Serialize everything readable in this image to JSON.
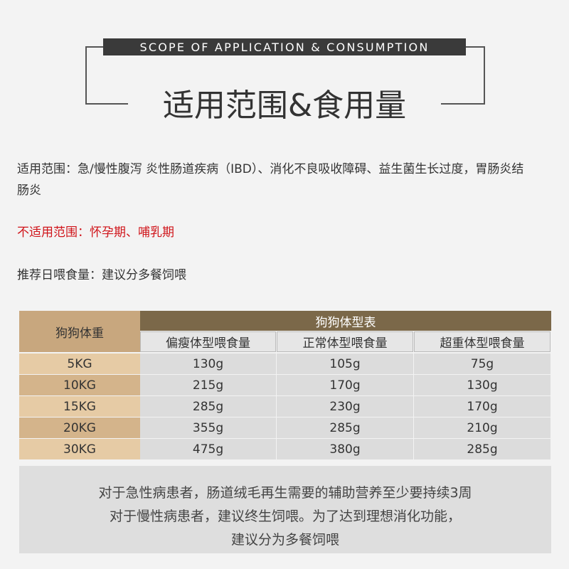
{
  "header": {
    "subtitle": "SCOPE OF APPLICATION & CONSUMPTION",
    "title": "适用范围&食用量"
  },
  "paragraphs": {
    "scope": "适用范围：急/慢性腹泻 炎性肠道疾病（IBD）、消化不良吸收障碍、益生菌生长过度，胃肠炎结肠炎",
    "not_suitable": "不适用范围：怀孕期、哺乳期",
    "feeding": "推荐日喂食量：建议分多餐饲喂"
  },
  "table": {
    "row_header": "狗狗体重",
    "group_header": "狗狗体型表",
    "columns": [
      "偏瘦体型喂食量",
      "正常体型喂食量",
      "超重体型喂食量"
    ],
    "rows": [
      [
        "5KG",
        "130g",
        "105g",
        "75g"
      ],
      [
        "10KG",
        "215g",
        "170g",
        "130g"
      ],
      [
        "15KG",
        "285g",
        "230g",
        "170g"
      ],
      [
        "20KG",
        "355g",
        "285g",
        "210g"
      ],
      [
        "30KG",
        "475g",
        "380g",
        "285g"
      ]
    ]
  },
  "note": [
    "对于急性病患者，肠道绒毛再生需要的辅助营养至少要持续3周",
    "对于慢性病患者，建议终生饲喂。为了达到理想消化功能，",
    "建议分为多餐饲喂"
  ]
}
